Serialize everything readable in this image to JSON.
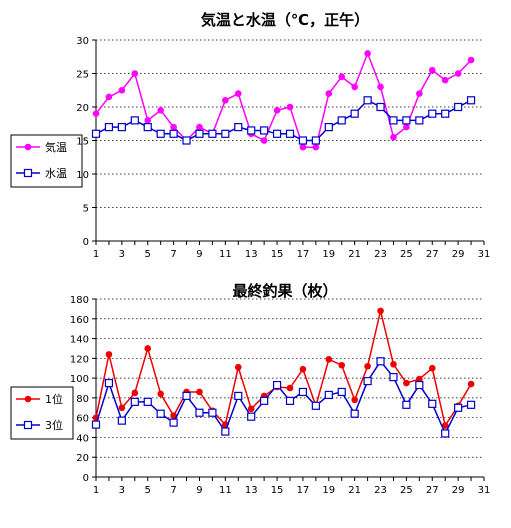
{
  "chart_data": [
    {
      "type": "line",
      "title": "気温と水温（℃，正午）",
      "x": [
        1,
        2,
        3,
        4,
        5,
        6,
        7,
        8,
        9,
        10,
        11,
        12,
        13,
        14,
        15,
        16,
        17,
        18,
        19,
        20,
        21,
        22,
        23,
        24,
        25,
        26,
        27,
        28,
        29,
        30
      ],
      "xlim": [
        1,
        31
      ],
      "xticks": [
        1,
        3,
        5,
        7,
        9,
        11,
        13,
        15,
        17,
        19,
        21,
        23,
        25,
        27,
        29,
        31
      ],
      "ylim": [
        0,
        30
      ],
      "yticks": [
        0,
        5,
        10,
        15,
        20,
        25,
        30
      ],
      "grid": true,
      "legend_position": "left",
      "series": [
        {
          "name": "気温",
          "color": "#ff00ff",
          "marker": "filled-circle",
          "values": [
            19,
            21.5,
            22.5,
            25,
            18,
            19.5,
            17,
            15,
            17,
            16,
            21,
            22,
            16,
            15,
            19.5,
            20,
            14,
            14,
            22,
            24.5,
            23,
            28,
            23,
            15.5,
            17,
            22,
            25.5,
            24,
            25,
            27
          ]
        },
        {
          "name": "水温",
          "color": "#0000cc",
          "marker": "open-square",
          "values": [
            16,
            17,
            17,
            18,
            17,
            16,
            16,
            15,
            16,
            16,
            16,
            17,
            16.5,
            16.5,
            16,
            16,
            15,
            15,
            17,
            18,
            19,
            21,
            20,
            18,
            18,
            18,
            19,
            19,
            20,
            21
          ]
        }
      ]
    },
    {
      "type": "line",
      "title": "最終釣果（枚）",
      "x": [
        1,
        2,
        3,
        4,
        5,
        6,
        7,
        8,
        9,
        10,
        11,
        12,
        13,
        14,
        15,
        16,
        17,
        18,
        19,
        20,
        21,
        22,
        23,
        24,
        25,
        26,
        27,
        28,
        29,
        30
      ],
      "xlim": [
        1,
        31
      ],
      "xticks": [
        1,
        3,
        5,
        7,
        9,
        11,
        13,
        15,
        17,
        19,
        21,
        23,
        25,
        27,
        29,
        31
      ],
      "ylim": [
        0,
        180
      ],
      "yticks": [
        0,
        20,
        40,
        60,
        80,
        100,
        120,
        140,
        160,
        180
      ],
      "grid": true,
      "legend_position": "left",
      "series": [
        {
          "name": "1位",
          "color": "#ee0000",
          "marker": "filled-circle",
          "values": [
            60,
            124,
            70,
            85,
            130,
            84,
            62,
            86,
            86,
            67,
            53,
            111,
            69,
            82,
            91,
            90,
            109,
            72,
            119,
            113,
            78,
            112,
            168,
            114,
            95,
            99,
            110,
            52,
            72,
            94
          ]
        },
        {
          "name": "3位",
          "color": "#0000cc",
          "marker": "open-square",
          "values": [
            53,
            95,
            57,
            76,
            76,
            64,
            55,
            82,
            65,
            65,
            46,
            82,
            61,
            77,
            93,
            77,
            86,
            72,
            83,
            86,
            64,
            97,
            117,
            101,
            73,
            93,
            74,
            44,
            70,
            73
          ]
        }
      ]
    }
  ]
}
